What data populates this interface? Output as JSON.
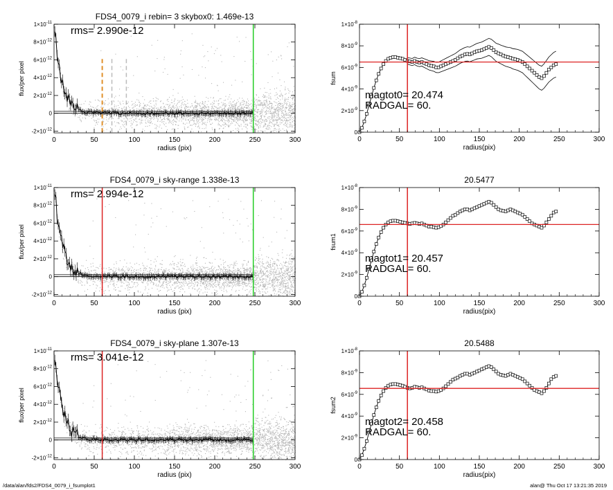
{
  "footer": {
    "path": "/data/alan/fds2/FDS4_0079_i_fsumplot1",
    "stamp": "alan@  Thu Oct 17 13:21:35 2019"
  },
  "colors": {
    "scatter": "#b4b4b4",
    "profile": "#000000",
    "aperture_line": "#dd2222",
    "sky_radius_line": "#22cc22",
    "skybox_dashed": "#e0902a",
    "guide_dashed": "#bbbbbb"
  },
  "chart_data": [
    {
      "type": "scatter",
      "title": "FDS4_0079_i rebin= 3    skybox0:  1.469e-13",
      "xlabel": "radius (pix)",
      "ylabel": "flux/per pixel",
      "xlim": [
        0,
        300
      ],
      "ylim": [
        -2.2e-12,
        1e-11
      ],
      "xticks": [
        "0",
        "50",
        "100",
        "150",
        "200",
        "250",
        "300"
      ],
      "yticks": [
        {
          "v": 1e-11,
          "m": "1×10",
          "e": "-11"
        },
        {
          "v": 8e-12,
          "m": "8×10",
          "e": "-12"
        },
        {
          "v": 6e-12,
          "m": "6×10",
          "e": "-12"
        },
        {
          "v": 4e-12,
          "m": "4×10",
          "e": "-12"
        },
        {
          "v": 2e-12,
          "m": "2×10",
          "e": "-12"
        },
        {
          "v": 0,
          "m": "0",
          "e": ""
        },
        {
          "v": -2e-12,
          "m": "-2×10",
          "e": "-12"
        }
      ],
      "annotation": "rms= 2.990e-12",
      "vlines": [
        {
          "x": 60,
          "color": "#e0902a",
          "style": "dashed",
          "ymax": 6.1e-12
        },
        {
          "x": 72,
          "color": "#bbbbbb",
          "style": "dashed",
          "ymax": 6.1e-12
        },
        {
          "x": 90,
          "color": "#bbbbbb",
          "style": "dashed",
          "ymax": 6.1e-12
        },
        {
          "x": 248,
          "color": "#22cc22",
          "style": "solid"
        }
      ],
      "hlines": [
        0.0,
        2.2e-13
      ],
      "seed": 11
    },
    {
      "type": "line",
      "title": "",
      "xlabel": "radius(pix)",
      "ylabel": "fsum",
      "xlim": [
        0,
        300
      ],
      "ylim": [
        0,
        1e-08
      ],
      "xticks": [
        "0",
        "50",
        "100",
        "150",
        "200",
        "250",
        "300"
      ],
      "yticks": [
        {
          "v": 1e-08,
          "m": "1×10",
          "e": "-8"
        },
        {
          "v": 8e-09,
          "m": "8×10",
          "e": "-9"
        },
        {
          "v": 6e-09,
          "m": "6×10",
          "e": "-9"
        },
        {
          "v": 4e-09,
          "m": "4×10",
          "e": "-9"
        },
        {
          "v": 2e-09,
          "m": "2×10",
          "e": "-9"
        },
        {
          "v": 0,
          "m": "0",
          "e": ""
        }
      ],
      "annotation_lines": [
        "magtot0=  20.474",
        "RADGAL=     60."
      ],
      "aperture_x": 60,
      "hline_y": 6.5e-09,
      "envelope": true,
      "series": [
        {
          "x": [
            0,
            3,
            6,
            9,
            12,
            15,
            18,
            21,
            24,
            27,
            30,
            33,
            36,
            39,
            42,
            45,
            48,
            51,
            54,
            57,
            60,
            63,
            66,
            69,
            72,
            75,
            78,
            81,
            84,
            87,
            90,
            93,
            96,
            99,
            102,
            105,
            108,
            111,
            114,
            117,
            120,
            123,
            126,
            129,
            132,
            135,
            138,
            141,
            144,
            147,
            150,
            153,
            156,
            159,
            162,
            165,
            168,
            171,
            174,
            177,
            180,
            183,
            186,
            189,
            192,
            195,
            198,
            201,
            204,
            207,
            210,
            213,
            216,
            219,
            222,
            225,
            228,
            231,
            234,
            237,
            240,
            243,
            246
          ],
          "values": [
            0.0,
            4e-10,
            1e-09,
            1.7e-09,
            2.5e-09,
            3.3e-09,
            4.1e-09,
            4.8e-09,
            5.4e-09,
            5.9e-09,
            6.3e-09,
            6.6e-09,
            6.8e-09,
            6.9e-09,
            6.95e-09,
            6.95e-09,
            6.9e-09,
            6.85e-09,
            6.8e-09,
            6.7e-09,
            6.6e-09,
            6.55e-09,
            6.5e-09,
            6.6e-09,
            6.5e-09,
            6.45e-09,
            6.5e-09,
            6.4e-09,
            6.3e-09,
            6.2e-09,
            6.15e-09,
            6.1e-09,
            6e-09,
            6e-09,
            6.1e-09,
            6.2e-09,
            6.3e-09,
            6.4e-09,
            6.5e-09,
            6.6e-09,
            6.7e-09,
            6.85e-09,
            7e-09,
            7.1e-09,
            7.2e-09,
            7.25e-09,
            7.2e-09,
            7.3e-09,
            7.4e-09,
            7.5e-09,
            7.55e-09,
            7.6e-09,
            7.7e-09,
            7.8e-09,
            7.9e-09,
            7.8e-09,
            7.6e-09,
            7.4e-09,
            7.3e-09,
            7.2e-09,
            7.1e-09,
            7e-09,
            6.95e-09,
            6.9e-09,
            6.8e-09,
            6.75e-09,
            6.7e-09,
            6.6e-09,
            6.5e-09,
            6.3e-09,
            6.1e-09,
            5.9e-09,
            5.7e-09,
            5.5e-09,
            5.3e-09,
            5.1e-09,
            5e-09,
            5.2e-09,
            5.5e-09,
            5.8e-09,
            6e-09,
            6.2e-09,
            6.3e-09
          ]
        }
      ]
    },
    {
      "type": "scatter",
      "title": "FDS4_0079_i sky-range  1.338e-13",
      "xlabel": "radius (pix)",
      "ylabel": "flux/per pixel",
      "xlim": [
        0,
        300
      ],
      "ylim": [
        -2.2e-12,
        1e-11
      ],
      "xticks": [
        "0",
        "50",
        "100",
        "150",
        "200",
        "250",
        "300"
      ],
      "yticks": [
        {
          "v": 1e-11,
          "m": "1×10",
          "e": "-11"
        },
        {
          "v": 8e-12,
          "m": "8×10",
          "e": "-12"
        },
        {
          "v": 6e-12,
          "m": "6×10",
          "e": "-12"
        },
        {
          "v": 4e-12,
          "m": "4×10",
          "e": "-12"
        },
        {
          "v": 2e-12,
          "m": "2×10",
          "e": "-12"
        },
        {
          "v": 0,
          "m": "0",
          "e": ""
        },
        {
          "v": -2e-12,
          "m": "-2×10",
          "e": "-12"
        }
      ],
      "annotation": "rms= 2.994e-12",
      "vlines": [
        {
          "x": 60,
          "color": "#dd2222",
          "style": "solid"
        },
        {
          "x": 248,
          "color": "#22cc22",
          "style": "solid"
        }
      ],
      "hlines": [
        0.0,
        2.2e-13
      ],
      "seed": 23
    },
    {
      "type": "line",
      "title": "20.5477",
      "xlabel": "radius(pix)",
      "ylabel": "fsum1",
      "xlim": [
        0,
        300
      ],
      "ylim": [
        0,
        1e-08
      ],
      "xticks": [
        "0",
        "50",
        "100",
        "150",
        "200",
        "250",
        "300"
      ],
      "yticks": [
        {
          "v": 1e-08,
          "m": "1×10",
          "e": "-8"
        },
        {
          "v": 8e-09,
          "m": "8×10",
          "e": "-9"
        },
        {
          "v": 6e-09,
          "m": "6×10",
          "e": "-9"
        },
        {
          "v": 4e-09,
          "m": "4×10",
          "e": "-9"
        },
        {
          "v": 2e-09,
          "m": "2×10",
          "e": "-9"
        },
        {
          "v": 0,
          "m": "0",
          "e": ""
        }
      ],
      "annotation_lines": [
        "magtot1=  20.457",
        "RADGAL=     60."
      ],
      "aperture_x": 60,
      "hline_y": 6.6e-09,
      "envelope": false,
      "series": [
        {
          "x": [
            0,
            3,
            6,
            9,
            12,
            15,
            18,
            21,
            24,
            27,
            30,
            33,
            36,
            39,
            42,
            45,
            48,
            51,
            54,
            57,
            60,
            63,
            66,
            69,
            72,
            75,
            78,
            81,
            84,
            87,
            90,
            93,
            96,
            99,
            102,
            105,
            108,
            111,
            114,
            117,
            120,
            123,
            126,
            129,
            132,
            135,
            138,
            141,
            144,
            147,
            150,
            153,
            156,
            159,
            162,
            165,
            168,
            171,
            174,
            177,
            180,
            183,
            186,
            189,
            192,
            195,
            198,
            201,
            204,
            207,
            210,
            213,
            216,
            219,
            222,
            225,
            228,
            231,
            234,
            237,
            240,
            243,
            246
          ],
          "values": [
            0.0,
            4e-10,
            1e-09,
            1.7e-09,
            2.5e-09,
            3.3e-09,
            4.1e-09,
            4.8e-09,
            5.4e-09,
            5.9e-09,
            6.3e-09,
            6.6e-09,
            6.8e-09,
            6.9e-09,
            6.95e-09,
            6.95e-09,
            6.9e-09,
            6.85e-09,
            6.8e-09,
            6.75e-09,
            6.7e-09,
            6.65e-09,
            6.7e-09,
            6.75e-09,
            6.7e-09,
            6.65e-09,
            6.7e-09,
            6.6e-09,
            6.5e-09,
            6.4e-09,
            6.4e-09,
            6.35e-09,
            6.3e-09,
            6.35e-09,
            6.45e-09,
            6.6e-09,
            6.8e-09,
            7e-09,
            7.2e-09,
            7.4e-09,
            7.5e-09,
            7.65e-09,
            7.8e-09,
            7.9e-09,
            8e-09,
            8e-09,
            7.9e-09,
            8e-09,
            8.1e-09,
            8.2e-09,
            8.3e-09,
            8.4e-09,
            8.5e-09,
            8.6e-09,
            8.7e-09,
            8.6e-09,
            8.4e-09,
            8.2e-09,
            8e-09,
            7.9e-09,
            7.85e-09,
            7.8e-09,
            7.9e-09,
            8e-09,
            7.9e-09,
            7.8e-09,
            7.7e-09,
            7.6e-09,
            7.5e-09,
            7.3e-09,
            7.1e-09,
            6.9e-09,
            6.7e-09,
            6.6e-09,
            6.5e-09,
            6.4e-09,
            6.3e-09,
            6.5e-09,
            6.8e-09,
            7.1e-09,
            7.4e-09,
            7.7e-09,
            7.8e-09
          ]
        }
      ]
    },
    {
      "type": "scatter",
      "title": "FDS4_0079_i sky-plane  1.307e-13",
      "xlabel": "radius (pix)",
      "ylabel": "flux/per pixel",
      "xlim": [
        0,
        300
      ],
      "ylim": [
        -2.2e-12,
        1e-11
      ],
      "xticks": [
        "0",
        "50",
        "100",
        "150",
        "200",
        "250",
        "300"
      ],
      "yticks": [
        {
          "v": 1e-11,
          "m": "1×10",
          "e": "-11"
        },
        {
          "v": 8e-12,
          "m": "8×10",
          "e": "-12"
        },
        {
          "v": 6e-12,
          "m": "6×10",
          "e": "-12"
        },
        {
          "v": 4e-12,
          "m": "4×10",
          "e": "-12"
        },
        {
          "v": 2e-12,
          "m": "2×10",
          "e": "-12"
        },
        {
          "v": 0,
          "m": "0",
          "e": ""
        },
        {
          "v": -2e-12,
          "m": "-2×10",
          "e": "-12"
        }
      ],
      "annotation": "rms= 3.041e-12",
      "vlines": [
        {
          "x": 60,
          "color": "#dd2222",
          "style": "solid"
        },
        {
          "x": 248,
          "color": "#22cc22",
          "style": "solid"
        }
      ],
      "hlines": [
        0.0,
        2.2e-13
      ],
      "seed": 37
    },
    {
      "type": "line",
      "title": "20.5488",
      "xlabel": "radius(pix)",
      "ylabel": "fsum2",
      "xlim": [
        0,
        300
      ],
      "ylim": [
        0,
        1e-08
      ],
      "xticks": [
        "0",
        "50",
        "100",
        "150",
        "200",
        "250",
        "300"
      ],
      "yticks": [
        {
          "v": 1e-08,
          "m": "1×10",
          "e": "-8"
        },
        {
          "v": 8e-09,
          "m": "8×10",
          "e": "-9"
        },
        {
          "v": 6e-09,
          "m": "6×10",
          "e": "-9"
        },
        {
          "v": 4e-09,
          "m": "4×10",
          "e": "-9"
        },
        {
          "v": 2e-09,
          "m": "2×10",
          "e": "-9"
        },
        {
          "v": 0,
          "m": "0",
          "e": ""
        }
      ],
      "annotation_lines": [
        "magtot2=  20.458",
        "RADGAL=     60."
      ],
      "aperture_x": 60,
      "hline_y": 6.55e-09,
      "envelope": false,
      "series": [
        {
          "x": [
            0,
            3,
            6,
            9,
            12,
            15,
            18,
            21,
            24,
            27,
            30,
            33,
            36,
            39,
            42,
            45,
            48,
            51,
            54,
            57,
            60,
            63,
            66,
            69,
            72,
            75,
            78,
            81,
            84,
            87,
            90,
            93,
            96,
            99,
            102,
            105,
            108,
            111,
            114,
            117,
            120,
            123,
            126,
            129,
            132,
            135,
            138,
            141,
            144,
            147,
            150,
            153,
            156,
            159,
            162,
            165,
            168,
            171,
            174,
            177,
            180,
            183,
            186,
            189,
            192,
            195,
            198,
            201,
            204,
            207,
            210,
            213,
            216,
            219,
            222,
            225,
            228,
            231,
            234,
            237,
            240,
            243,
            246
          ],
          "values": [
            0.0,
            4e-10,
            1e-09,
            1.7e-09,
            2.5e-09,
            3.3e-09,
            4.1e-09,
            4.8e-09,
            5.4e-09,
            5.9e-09,
            6.3e-09,
            6.6e-09,
            6.8e-09,
            6.9e-09,
            6.95e-09,
            6.95e-09,
            6.9e-09,
            6.85e-09,
            6.8e-09,
            6.7e-09,
            6.6e-09,
            6.55e-09,
            6.6e-09,
            6.7e-09,
            6.65e-09,
            6.6e-09,
            6.65e-09,
            6.55e-09,
            6.45e-09,
            6.35e-09,
            6.3e-09,
            6.3e-09,
            6.25e-09,
            6.3e-09,
            6.4e-09,
            6.55e-09,
            6.75e-09,
            6.95e-09,
            7.15e-09,
            7.35e-09,
            7.45e-09,
            7.55e-09,
            7.7e-09,
            7.8e-09,
            7.9e-09,
            7.9e-09,
            7.8e-09,
            7.9e-09,
            8e-09,
            8.1e-09,
            8.2e-09,
            8.3e-09,
            8.4e-09,
            8.5e-09,
            8.6e-09,
            8.5e-09,
            8.3e-09,
            8.1e-09,
            7.9e-09,
            7.8e-09,
            7.75e-09,
            7.7e-09,
            7.8e-09,
            7.9e-09,
            7.8e-09,
            7.7e-09,
            7.6e-09,
            7.5e-09,
            7.4e-09,
            7.2e-09,
            7e-09,
            6.8e-09,
            6.6e-09,
            6.4e-09,
            6.3e-09,
            6.2e-09,
            6.1e-09,
            6.3e-09,
            6.6e-09,
            7e-09,
            7.4e-09,
            7.6e-09,
            7.7e-09
          ]
        }
      ]
    }
  ]
}
